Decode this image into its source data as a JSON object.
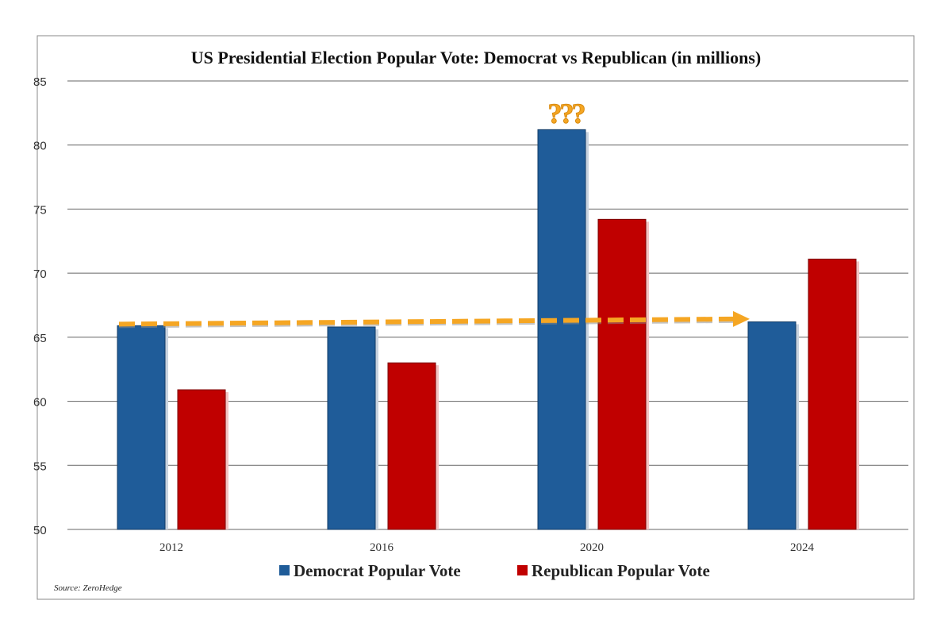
{
  "chart_data": {
    "type": "bar",
    "title": "US Presidential Election Popular Vote: Democrat vs Republican (in millions)",
    "xlabel": "",
    "ylabel": "",
    "categories": [
      "2012",
      "2016",
      "2020",
      "2024"
    ],
    "series": [
      {
        "name": "Democrat Popular Vote",
        "color": "#1f5c99",
        "values": [
          65.9,
          65.8,
          81.2,
          66.2
        ]
      },
      {
        "name": "Republican Popular Vote",
        "color": "#c00000",
        "values": [
          60.9,
          63.0,
          74.2,
          71.1
        ]
      }
    ],
    "ylim": [
      50,
      85
    ],
    "yticks": [
      "50",
      "55",
      "60",
      "65",
      "70",
      "75",
      "80",
      "85"
    ],
    "grid": true,
    "legend": "bottom",
    "annotations": {
      "question_marks": "???",
      "arrow_color": "#f5a623",
      "arrow_from": {
        "category": "2012",
        "value": 65.9
      },
      "arrow_to": {
        "category": "2024",
        "value": 66.3
      }
    },
    "source": "Source: ZeroHedge"
  }
}
